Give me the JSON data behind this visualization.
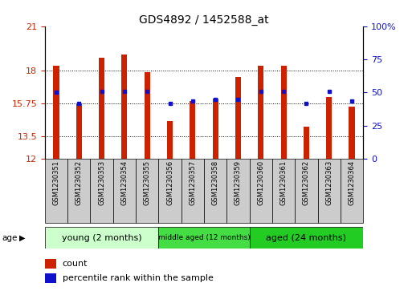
{
  "title": "GDS4892 / 1452588_at",
  "samples": [
    "GSM1230351",
    "GSM1230352",
    "GSM1230353",
    "GSM1230354",
    "GSM1230355",
    "GSM1230356",
    "GSM1230357",
    "GSM1230358",
    "GSM1230359",
    "GSM1230360",
    "GSM1230361",
    "GSM1230362",
    "GSM1230363",
    "GSM1230364"
  ],
  "counts": [
    18.3,
    15.75,
    18.85,
    19.05,
    17.85,
    14.55,
    15.9,
    16.1,
    17.55,
    18.3,
    18.3,
    14.15,
    16.2,
    15.55
  ],
  "percentile_y": [
    16.5,
    15.75,
    16.55,
    16.55,
    16.55,
    15.75,
    15.9,
    16.0,
    16.0,
    16.55,
    16.55,
    15.75,
    16.55,
    15.9
  ],
  "y_min": 12,
  "y_max": 21,
  "y_ticks_left": [
    12,
    13.5,
    15.75,
    18,
    21
  ],
  "y_ticks_right_vals": [
    0,
    25,
    50,
    75,
    100
  ],
  "y_ticks_right_labels": [
    "0",
    "25",
    "50",
    "75",
    "100%"
  ],
  "bar_color": "#cc2200",
  "marker_color": "#1111cc",
  "bar_width": 0.25,
  "dotted_lines": [
    18.0,
    15.75,
    13.5
  ],
  "groups": [
    {
      "label": "young (2 months)",
      "start": 0,
      "end": 5,
      "color": "#ccffcc"
    },
    {
      "label": "middle aged (12 months)",
      "start": 5,
      "end": 9,
      "color": "#44dd44"
    },
    {
      "label": "aged (24 months)",
      "start": 9,
      "end": 14,
      "color": "#22cc22"
    }
  ],
  "legend_count_label": "count",
  "legend_pct_label": "percentile rank within the sample",
  "tick_color_left": "#cc2200",
  "tick_color_right": "#1111cc",
  "bg_color": "#ffffff",
  "label_area_color": "#cccccc",
  "title_fontsize": 10,
  "axis_fontsize": 8,
  "sample_fontsize": 6,
  "group_fontsize_large": 8,
  "group_fontsize_small": 6.5
}
